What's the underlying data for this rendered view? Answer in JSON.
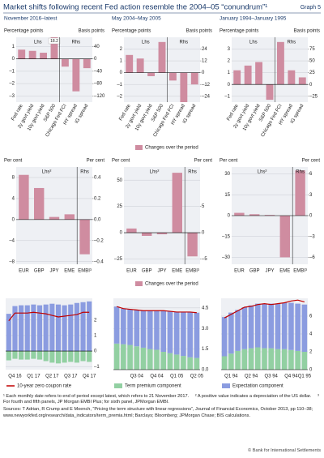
{
  "title": "Market shifts following recent Fed action resemble the 2004–05 “conundrum”¹",
  "graph_label": "Graph 5",
  "row_legends": [
    "Changes over the period",
    "Changes over the period"
  ],
  "chart_data": [
    {
      "type": "bar",
      "title": "November 2016–latest",
      "ylabel": "Percentage points",
      "y2label": "Basis points",
      "categories": [
        "Fed rate",
        "2y govt yield",
        "10y govt yield",
        "S&P 500",
        "Chicago Fed FCI",
        "HY spread",
        "IG spread"
      ],
      "series": [
        {
          "name": "Lhs",
          "color": "#cf8ca0",
          "values": [
            0.75,
            0.65,
            0.5,
            18.2,
            null,
            null,
            null
          ],
          "value_labels": [
            null,
            null,
            null,
            "18.2",
            null,
            null,
            null
          ]
        },
        {
          "name": "Rhs",
          "color": "#cf8ca0",
          "axis": "y2",
          "values": [
            null,
            null,
            null,
            null,
            -25,
            -105,
            -30
          ]
        }
      ],
      "ylim": [
        -3.5,
        1.75
      ],
      "yticks": [
        1,
        0,
        {
          "value": -1,
          "label": "–1"
        },
        {
          "value": -2,
          "label": "–2"
        },
        {
          "value": -3,
          "label": "–3"
        }
      ],
      "y2lim": [
        -140,
        70
      ],
      "y2ticks": [
        40,
        0,
        {
          "value": -40,
          "label": "–40"
        },
        {
          "value": -80,
          "label": "–80"
        },
        {
          "value": -120,
          "label": "–120"
        }
      ],
      "grid": true
    },
    {
      "type": "bar",
      "title": "May 2004–May 2005",
      "ylabel": "Percentage points",
      "y2label": "Basis points",
      "categories": [
        "Fed rate",
        "2y govt yield",
        "10y govt yield",
        "S&P 500",
        "Chicago Fed FCI",
        "HY spread",
        "IG spread"
      ],
      "series": [
        {
          "name": "Lhs",
          "color": "#cf8ca0",
          "values": [
            1.5,
            1.2,
            -0.3,
            2.6,
            null,
            null,
            null
          ]
        },
        {
          "name": "Rhs",
          "color": "#cf8ca0",
          "axis": "y2",
          "values": [
            null,
            null,
            null,
            null,
            -8,
            -30,
            -12
          ]
        }
      ],
      "ylim": [
        -2.5,
        3
      ],
      "yticks": [
        2,
        1,
        0,
        {
          "value": -1,
          "label": "–1"
        },
        {
          "value": -2,
          "label": "–2"
        }
      ],
      "y2lim": [
        -30,
        36
      ],
      "y2ticks": [
        24,
        12,
        0,
        {
          "value": -12,
          "label": "–12"
        },
        {
          "value": -24,
          "label": "–24"
        }
      ],
      "grid": true
    },
    {
      "type": "bar",
      "title": "January 1994–January 1995",
      "ylabel": "Percentage points",
      "y2label": "Basis points",
      "categories": [
        "Fed rate",
        "2y govt yield",
        "10y govt yield",
        "S&P 500",
        "Chicago Fed FCI",
        "HY spread",
        "IG spread"
      ],
      "series": [
        {
          "name": "Lhs",
          "color": "#cf8ca0",
          "values": [
            1.2,
            1.6,
            1.9,
            -1.3,
            null,
            null,
            null
          ]
        },
        {
          "name": "Rhs",
          "color": "#cf8ca0",
          "axis": "y2",
          "values": [
            null,
            null,
            null,
            null,
            90,
            30,
            15
          ]
        }
      ],
      "ylim": [
        -1.5,
        4
      ],
      "yticks": [
        3,
        2,
        1,
        0,
        {
          "value": -1,
          "label": "–1"
        }
      ],
      "y2lim": [
        -37.5,
        100
      ],
      "y2ticks": [
        75,
        50,
        25,
        0,
        {
          "value": -25,
          "label": "–25"
        }
      ],
      "grid": true
    },
    {
      "type": "bar",
      "ylabel": "Per cent",
      "y2label": "Per cent",
      "categories": [
        "EUR",
        "GBP",
        "JPY",
        "EME",
        "EMBI³"
      ],
      "series": [
        {
          "name": "Lhs²",
          "color": "#cf8ca0",
          "values": [
            8.5,
            6,
            0.5,
            1,
            null
          ]
        },
        {
          "name": "Rhs",
          "color": "#cf8ca0",
          "axis": "y2",
          "values": [
            null,
            null,
            null,
            null,
            -0.33
          ]
        }
      ],
      "ylim": [
        -8.5,
        10
      ],
      "yticks": [
        8,
        4,
        0,
        {
          "value": -4,
          "label": "–4"
        },
        {
          "value": -8,
          "label": "–8"
        }
      ],
      "y2lim": [
        -0.425,
        0.5
      ],
      "y2ticks": [
        0.4,
        0.2,
        {
          "value": 0,
          "label": "0.0"
        },
        {
          "value": -0.2,
          "label": "–0.2"
        },
        {
          "value": -0.4,
          "label": "–0.4"
        }
      ],
      "grid": true
    },
    {
      "type": "bar",
      "ylabel": "Per cent",
      "y2label": "Per cent",
      "categories": [
        "EUR",
        "GBP",
        "JPY",
        "EME",
        "EMBI³"
      ],
      "series": [
        {
          "name": "Lhs²",
          "color": "#cf8ca0",
          "values": [
            4,
            -3,
            -1.5,
            57,
            null
          ]
        },
        {
          "name": "Rhs",
          "color": "#cf8ca0",
          "axis": "y2",
          "values": [
            null,
            null,
            null,
            null,
            -4.5
          ]
        }
      ],
      "ylim": [
        -30,
        62.5
      ],
      "yticks": [
        50,
        25,
        0,
        {
          "value": -25,
          "label": "–25"
        }
      ],
      "y2lim": [
        -6,
        12.5
      ],
      "y2ticks": [
        5,
        0,
        {
          "value": -5,
          "label": "–5"
        }
      ],
      "grid": true
    },
    {
      "type": "bar",
      "ylabel": "Per cent",
      "y2label": "Per cent",
      "categories": [
        "EUR",
        "GBP",
        "JPY",
        "EME",
        "EMBI³"
      ],
      "series": [
        {
          "name": "Lhs²",
          "color": "#cf8ca0",
          "values": [
            2,
            1,
            0.5,
            -30,
            null
          ]
        },
        {
          "name": "Rhs",
          "color": "#cf8ca0",
          "axis": "y2",
          "values": [
            null,
            null,
            null,
            null,
            6.5
          ]
        }
      ],
      "ylim": [
        -35,
        35
      ],
      "yticks": [
        30,
        15,
        0,
        {
          "value": -15,
          "label": "–15"
        },
        {
          "value": -30,
          "label": "–30"
        }
      ],
      "y2lim": [
        -7,
        7
      ],
      "y2ticks": [
        6,
        3,
        0,
        {
          "value": -3,
          "label": "–3"
        },
        {
          "value": -6,
          "label": "–6"
        }
      ],
      "grid": true
    },
    {
      "type": "combo",
      "yaxis_side": "right",
      "categories": [
        null,
        "Q4 16",
        null,
        null,
        "Q1 17",
        null,
        null,
        "Q2 17",
        null,
        null,
        "Q3 17",
        null,
        null,
        "Q4 17"
      ],
      "series": [
        {
          "name": "10-year zero coupon rate",
          "type": "line",
          "color": "#c00000",
          "values": [
            1.95,
            2.45,
            2.45,
            2.45,
            2.5,
            2.45,
            2.4,
            2.3,
            2.2,
            2.25,
            2.3,
            2.35,
            2.5,
            2.5
          ]
        },
        {
          "name": "Term premium component",
          "type": "bar",
          "color": "#92d0a2",
          "values": [
            -0.6,
            -0.5,
            -0.55,
            -0.55,
            -0.5,
            -0.55,
            -0.65,
            -0.75,
            -0.8,
            -0.75,
            -0.7,
            -0.75,
            -0.65,
            -0.7
          ]
        },
        {
          "name": "Expectation component",
          "type": "bar",
          "color": "#8b9ce0",
          "values": [
            2.4,
            2.9,
            2.95,
            2.95,
            3.0,
            2.95,
            3.0,
            3.05,
            3.0,
            2.95,
            3.0,
            3.1,
            3.15,
            3.2
          ]
        }
      ],
      "ylim": [
        -1.2,
        3.4
      ],
      "yticks": [
        2,
        1,
        0,
        {
          "value": -1,
          "label": "–1"
        }
      ],
      "grid": true
    },
    {
      "type": "combo",
      "yaxis_side": "right",
      "categories": [
        null,
        null,
        null,
        "Q3 04",
        null,
        null,
        "Q4 04",
        null,
        null,
        "Q1 05",
        null,
        null,
        "Q2 05"
      ],
      "series": [
        {
          "name": "10-year zero coupon rate",
          "type": "line",
          "color": "#c00000",
          "values": [
            4.6,
            4.45,
            4.4,
            4.35,
            4.3,
            4.3,
            4.3,
            4.3,
            4.25,
            4.2,
            4.2,
            4.2,
            4.15
          ]
        },
        {
          "name": "Term premium component",
          "type": "bar",
          "color": "#92d0a2",
          "values": [
            1.9,
            1.85,
            1.8,
            1.7,
            1.6,
            1.5,
            1.45,
            1.3,
            1.2,
            1.1,
            1.0,
            0.9,
            0.85
          ]
        },
        {
          "name": "Expectation component",
          "type": "bar",
          "color": "#8b9ce0",
          "values": [
            2.7,
            2.6,
            2.6,
            2.65,
            2.7,
            2.8,
            2.85,
            3.0,
            3.05,
            3.1,
            3.2,
            3.3,
            3.3
          ]
        }
      ],
      "ylim": [
        0,
        5.2
      ],
      "yticks": [
        4.5,
        {
          "value": 3,
          "label": "3.0"
        },
        1.5,
        {
          "value": 0,
          "label": "0.0"
        }
      ],
      "grid": true
    },
    {
      "type": "combo",
      "yaxis_side": "right",
      "categories": [
        null,
        "Q1 94",
        null,
        null,
        "Q2 94",
        null,
        null,
        "Q3 94",
        null,
        null,
        "Q4 94",
        null,
        "Q1 95"
      ],
      "series": [
        {
          "name": "10-year zero coupon rate",
          "type": "line",
          "color": "#c00000",
          "values": [
            5.8,
            6.2,
            6.6,
            7.0,
            7.1,
            7.3,
            7.4,
            7.3,
            7.4,
            7.5,
            7.7,
            7.8,
            7.6
          ]
        },
        {
          "name": "Term premium component",
          "type": "bar",
          "color": "#92d0a2",
          "values": [
            1.5,
            1.8,
            2.1,
            2.3,
            2.4,
            2.5,
            2.4,
            2.4,
            2.3,
            2.3,
            2.2,
            2.1,
            2.0
          ]
        },
        {
          "name": "Expectation component",
          "type": "bar",
          "color": "#8b9ce0",
          "values": [
            4.4,
            4.6,
            4.6,
            4.7,
            4.8,
            4.9,
            5.0,
            5.0,
            5.1,
            5.2,
            5.3,
            5.3,
            5.3
          ]
        }
      ],
      "ylim": [
        0,
        8
      ],
      "yticks": [
        6,
        4,
        2,
        0
      ],
      "grid": true
    }
  ],
  "footnotes": [
    "¹ Each monthly date refers to end of period except latest, which refers to 21 November 2017.",
    "² A positive value indicates a depreciation of the US dollar.",
    "³ For fourth and fifth panels, JP Morgan EMBI Plus; for sixth panel, JPMorgan EMBI."
  ],
  "source": "Sources: T Adrian, R Crump and E Moench, “Pricing the term structure with linear regressions”, Journal of Financial Economics, October 2013, pp 110–38; www.newyorkfed.org/research/data_indicators/term_premia.html; Barclays; Bloomberg; JPMorgan Chase; BIS calculations.",
  "copyright": "© Bank for International Settlements"
}
